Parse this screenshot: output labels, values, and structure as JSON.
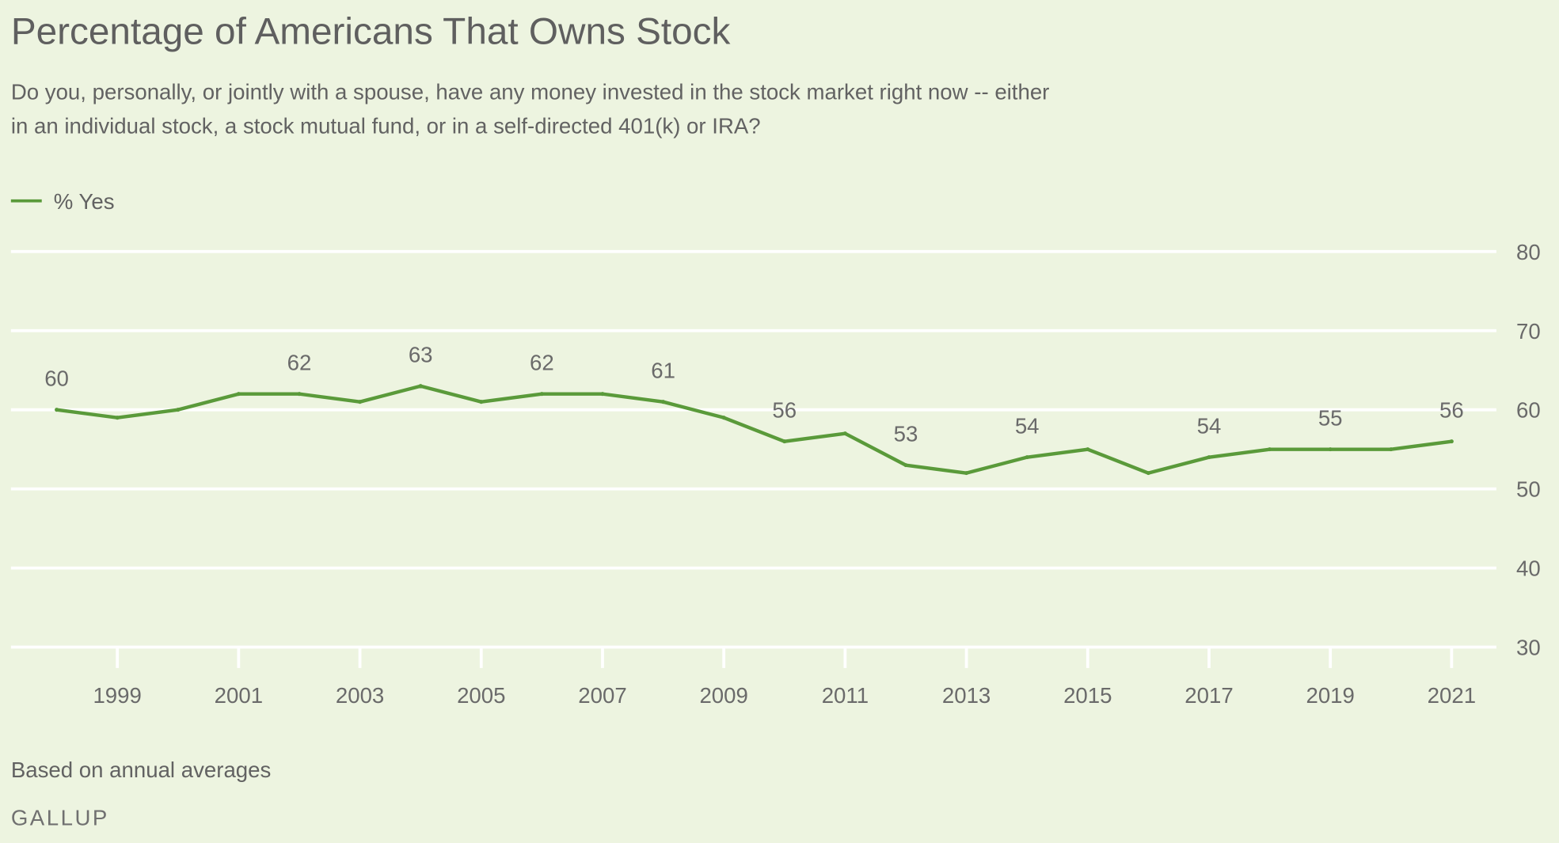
{
  "chart_data": {
    "type": "line",
    "title": "Percentage of Americans That Owns Stock",
    "subtitle_lines": [
      "Do you, personally, or jointly with a spouse, have any money invested in the stock market right now -- either",
      "in an individual stock, a stock mutual fund, or in a self-directed 401(k) or IRA?"
    ],
    "legend": {
      "label": "% Yes",
      "placement": "top-left"
    },
    "x": [
      1998,
      1999,
      2000,
      2001,
      2002,
      2003,
      2004,
      2005,
      2006,
      2007,
      2008,
      2009,
      2010,
      2011,
      2012,
      2013,
      2014,
      2015,
      2016,
      2017,
      2018,
      2019,
      2020,
      2021
    ],
    "series": [
      {
        "name": "% Yes",
        "color": "#5a9a3a",
        "values": [
          60,
          59,
          60,
          62,
          62,
          61,
          63,
          61,
          62,
          62,
          61,
          59,
          56,
          57,
          53,
          52,
          54,
          55,
          52,
          54,
          55,
          55,
          55,
          56
        ]
      }
    ],
    "data_labels": [
      {
        "x": 1998,
        "label": "60"
      },
      {
        "x": 2002,
        "label": "62"
      },
      {
        "x": 2004,
        "label": "63"
      },
      {
        "x": 2006,
        "label": "62"
      },
      {
        "x": 2008,
        "label": "61"
      },
      {
        "x": 2010,
        "label": "56"
      },
      {
        "x": 2012,
        "label": "53"
      },
      {
        "x": 2014,
        "label": "54"
      },
      {
        "x": 2017,
        "label": "54"
      },
      {
        "x": 2019,
        "label": "55"
      },
      {
        "x": 2021,
        "label": "56"
      }
    ],
    "x_ticks": [
      "1999",
      "2001",
      "2003",
      "2005",
      "2007",
      "2009",
      "2011",
      "2013",
      "2015",
      "2017",
      "2019",
      "2021"
    ],
    "y_ticks": [
      "80",
      "70",
      "60",
      "50",
      "40",
      "30"
    ],
    "ylim": [
      30,
      80
    ],
    "xlabel": "",
    "ylabel": "",
    "grid": true,
    "y_axis_side": "right",
    "background": "#edf4e0",
    "gridline_color": "#ffffff"
  },
  "footer": {
    "note": "Based on annual averages",
    "brand": "GALLUP"
  }
}
